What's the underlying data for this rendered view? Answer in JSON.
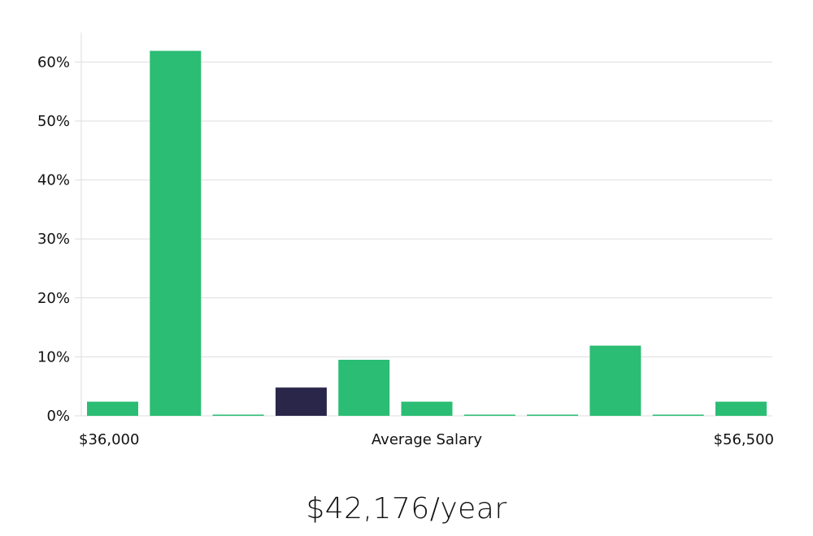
{
  "colors": {
    "bar": "#2bbd74",
    "highlight": "#29264a",
    "grid": "#dedede",
    "axis": "#dddddd",
    "text": "#111111"
  },
  "chart_data": {
    "type": "bar",
    "title": "",
    "xlabel": "Average Salary",
    "ylabel": "",
    "x_start_label": "$36,000",
    "x_end_label": "$56,500",
    "ylim": [
      0,
      65
    ],
    "yticks": [
      0,
      10,
      20,
      30,
      40,
      50,
      60
    ],
    "ytick_labels": [
      "0%",
      "10%",
      "20%",
      "30%",
      "40%",
      "50%",
      "60%"
    ],
    "values": [
      2.4,
      61.9,
      0,
      4.8,
      9.5,
      2.4,
      0,
      0,
      11.9,
      0,
      2.4
    ],
    "highlight_index": 3,
    "grid": true,
    "legend": "none"
  },
  "salary": {
    "display": "$42,176/year"
  }
}
